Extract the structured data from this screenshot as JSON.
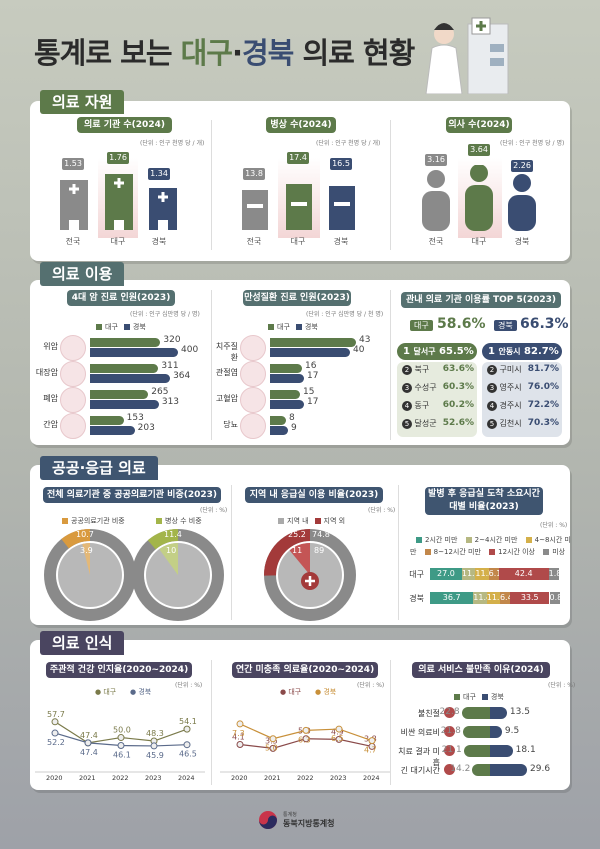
{
  "title": {
    "prefix": "통계로 보는 ",
    "daegu": "대구",
    "dot": "·",
    "gyeongbuk": "경북",
    "suffix": " 의료 현황"
  },
  "colors": {
    "daegu": "#5d7a4a",
    "gyeongbuk": "#3a4d72",
    "national": "#8a8a8a",
    "sec1": "#5d7a4a",
    "sec2": "#557070",
    "sec3": "#3f5570",
    "sec4": "#4a4560"
  },
  "sections": [
    {
      "label": "의료 자원"
    },
    {
      "label": "의료 이용"
    },
    {
      "label": "공공·응급 의료"
    },
    {
      "label": "의료 인식"
    }
  ],
  "regions": {
    "national": "전국",
    "daegu": "대구",
    "gyeongbuk": "경북"
  },
  "chart_data": [
    {
      "type": "bar",
      "title": "의료 기관 수(2024)",
      "unit": "(단위 : 인구 천명 당 / 개)",
      "categories": [
        "전국",
        "대구",
        "경북"
      ],
      "values": [
        1.53,
        1.76,
        1.34
      ]
    },
    {
      "type": "bar",
      "title": "병상 수(2024)",
      "unit": "(단위 : 인구 천명 당 / 개)",
      "categories": [
        "전국",
        "대구",
        "경북"
      ],
      "values": [
        13.8,
        17.4,
        16.5
      ]
    },
    {
      "type": "bar",
      "title": "의사 수(2024)",
      "unit": "(단위 : 인구 천명 당 / 명)",
      "categories": [
        "전국",
        "대구",
        "경북"
      ],
      "values": [
        3.16,
        3.64,
        2.26
      ]
    },
    {
      "type": "bar",
      "title": "4대 암 진료 인원(2023)",
      "unit": "(단위 : 인구 십만명 당 / 명)",
      "categories": [
        "위암",
        "대장암",
        "폐암",
        "간암"
      ],
      "series": [
        {
          "name": "대구",
          "values": [
            320,
            311,
            265,
            153
          ]
        },
        {
          "name": "경북",
          "values": [
            400,
            364,
            313,
            203
          ]
        }
      ]
    },
    {
      "type": "bar",
      "title": "만성질환 진료 인원(2023)",
      "unit": "(단위 : 인구 십만명 당 / 천 명)",
      "categories": [
        "치주질환",
        "관절염",
        "고혈압",
        "당뇨"
      ],
      "series": [
        {
          "name": "대구",
          "values": [
            43,
            16,
            15,
            8
          ]
        },
        {
          "name": "경북",
          "values": [
            40,
            17,
            17,
            9
          ]
        }
      ]
    },
    {
      "type": "table",
      "title": "관내 의료 기관 이용률 TOP 5(2023)",
      "daegu": {
        "total": "58.6%",
        "rank": [
          [
            "달서구",
            "65.5%"
          ],
          [
            "북구",
            "63.6%"
          ],
          [
            "수성구",
            "60.3%"
          ],
          [
            "동구",
            "60.2%"
          ],
          [
            "달성군",
            "52.6%"
          ]
        ]
      },
      "gyeongbuk": {
        "total": "66.3%",
        "rank": [
          [
            "안동시",
            "82.7%"
          ],
          [
            "구미시",
            "81.7%"
          ],
          [
            "영주시",
            "76.0%"
          ],
          [
            "경주시",
            "72.2%"
          ],
          [
            "김천시",
            "70.3%"
          ]
        ]
      }
    },
    {
      "type": "pie",
      "title": "전체 의료기관 중 공공의료기관 비중(2023)",
      "unit": "(단위 : %)",
      "legend": [
        "공공의료기관 비중",
        "병상 수 비중"
      ],
      "series": [
        {
          "name": "공공의료기관 비중",
          "대구": 3.9,
          "경북": 10.7
        },
        {
          "name": "병상 수 비중",
          "대구": 10.0,
          "경북": 11.4
        }
      ]
    },
    {
      "type": "pie",
      "title": "지역 내 응급실 이용 비율(2023)",
      "unit": "(단위 : %)",
      "legend": [
        "지역 내",
        "지역 외"
      ],
      "series": [
        {
          "name": "대구",
          "지역 내": 89.0,
          "지역 외": 11.0
        },
        {
          "name": "경북",
          "지역 내": 74.8,
          "지역 외": 25.2
        }
      ]
    },
    {
      "type": "bar",
      "title": "발병 후 응급실 도착 소요시간대별 비율(2023)",
      "unit": "(단위 : %)",
      "categories": [
        "2시간 미만",
        "2~4시간 미만",
        "4~8시간 미만",
        "8~12시간 미만",
        "12시간 이상",
        "미상"
      ],
      "series": [
        {
          "name": "대구",
          "values": [
            27.0,
            11.5,
            11.2,
            6.1,
            42.4,
            1.8
          ]
        },
        {
          "name": "경북",
          "values": [
            36.7,
            11.4,
            11.2,
            6.4,
            33.5,
            0.8
          ]
        }
      ]
    },
    {
      "type": "line",
      "title": "주관적 건강 인지율(2020~2024)",
      "unit": "(단위 : %)",
      "x": [
        "2020",
        "2021",
        "2022",
        "2023",
        "2024"
      ],
      "series": [
        {
          "name": "대구",
          "values": [
            57.7,
            47.4,
            50.0,
            48.3,
            54.1
          ]
        },
        {
          "name": "경북",
          "values": [
            52.2,
            47.4,
            46.1,
            45.9,
            46.5
          ]
        }
      ]
    },
    {
      "type": "line",
      "title": "연간 미충족 의료율(2020~2024)",
      "unit": "(단위 : %)",
      "x": [
        "2020",
        "2021",
        "2022",
        "2023",
        "2024"
      ],
      "series": [
        {
          "name": "대구",
          "values": [
            4.1,
            3.5,
            5.0,
            4.9,
            3.8
          ]
        },
        {
          "name": "경북",
          "values": [
            7.3,
            5.0,
            6.3,
            6.5,
            4.7
          ]
        }
      ]
    },
    {
      "type": "bar",
      "title": "의료 서비스 불만족 이유(2024)",
      "unit": "(단위 : %)",
      "categories": [
        "불친절",
        "비싼 의료비",
        "치료 결과 미흡",
        "긴 대기시간"
      ],
      "series": [
        {
          "name": "대구",
          "values": [
            22.8,
            21.8,
            21.1,
            14.2
          ]
        },
        {
          "name": "경북",
          "values": [
            13.5,
            9.5,
            18.1,
            29.6
          ]
        }
      ]
    }
  ],
  "labels": {
    "c0v": [
      "1.53",
      "1.76",
      "1.34"
    ],
    "c1v": [
      "13.8",
      "17.4",
      "16.5"
    ],
    "c2v": [
      "3.16",
      "3.64",
      "2.26"
    ],
    "top5_daegu_label": "대구",
    "top5_gb_label": "경북",
    "in": "지역 내",
    "out": "지역 외",
    "pie_daegu": "대구",
    "pie_gb": "경북",
    "ld2": "2시간 미만",
    "ld4": "2~4시간 미만",
    "ld8": "4~8시간 미만",
    "ld12": "8~12시간 미만",
    "ld12p": "12시간 이상",
    "ldu": "미상"
  },
  "footer": {
    "org_small": "통계청",
    "org": "동북지방통계청"
  }
}
